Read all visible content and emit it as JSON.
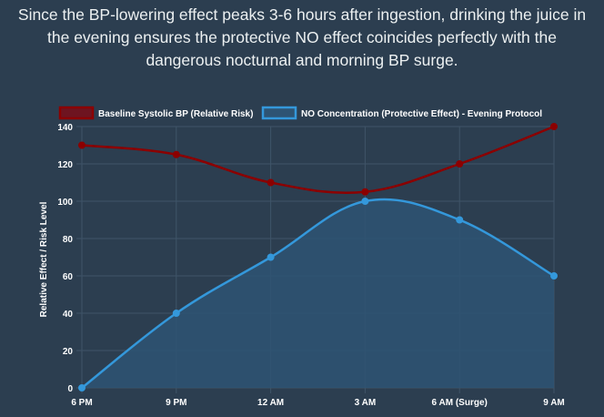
{
  "caption": {
    "lines": [
      "Since the BP-lowering effect peaks 3-6 hours after ingestion, drinking the juice in",
      "the evening ensures the protective NO effect coincides perfectly with the",
      "dangerous nocturnal and morning BP surge."
    ]
  },
  "colors": {
    "background": "#2c3e50",
    "grid": "#3f5468",
    "baseline_line": "#8b0000",
    "baseline_legend_fill": "#6e1420",
    "no_line": "#3498db",
    "no_fill": "#2e5473",
    "text": "#ffffff"
  },
  "chart_data": {
    "type": "line",
    "categories": [
      "6 PM",
      "9 PM",
      "12 AM",
      "3 AM",
      "6 AM (Surge)",
      "9 AM"
    ],
    "series": [
      {
        "name": "Baseline Systolic BP (Relative Risk)",
        "values": [
          130,
          125,
          110,
          105,
          120,
          140
        ],
        "filled": false,
        "color": "#8b0000"
      },
      {
        "name": "NO Concentration (Protective Effect) - Evening Protocol",
        "values": [
          0,
          40,
          70,
          100,
          90,
          60
        ],
        "filled": true,
        "color": "#3498db"
      }
    ],
    "ylabel": "Relative Effect / Risk Level",
    "xlabel": "",
    "ylim": [
      0,
      140
    ],
    "yticks": [
      0,
      20,
      40,
      60,
      80,
      100,
      120,
      140
    ],
    "legend": "top",
    "grid": true
  }
}
